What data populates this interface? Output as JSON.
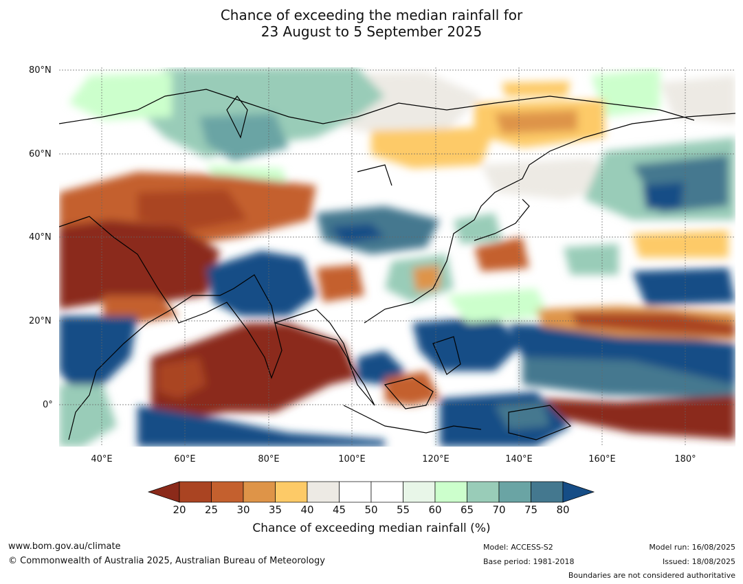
{
  "header": {
    "title_line1": "Chance of exceeding the median rainfall for",
    "title_line2": "23 August to 5 September 2025"
  },
  "map": {
    "lat_labels": [
      "80°N",
      "60°N",
      "40°N",
      "20°N",
      "0°"
    ],
    "lon_labels": [
      "40°E",
      "60°E",
      "80°E",
      "100°E",
      "120°E",
      "140°E",
      "160°E",
      "180°"
    ],
    "extent": {
      "lon": [
        30,
        190
      ],
      "lat": [
        -10,
        80
      ]
    }
  },
  "legend": {
    "title": "Chance of exceeding median rainfall (%)",
    "ticks": [
      "20",
      "25",
      "30",
      "35",
      "40",
      "45",
      "50",
      "55",
      "60",
      "65",
      "70",
      "75",
      "80"
    ],
    "colors": [
      "#8b2a1a",
      "#aa4422",
      "#c4602e",
      "#de9448",
      "#fdca67",
      "#edeae4",
      "#ffffff",
      "#ffffff",
      "#e8f6e8",
      "#ccffcc",
      "#99ccb8",
      "#6aa4a4",
      "#44788f",
      "#164d86"
    ]
  },
  "footer": {
    "website": "www.bom.gov.au/climate",
    "copyright": "© Commonwealth of Australia 2025, Australian Bureau of Meteorology",
    "model": "Model: ACCESS-S2",
    "base_period": "Base period: 1981-2018",
    "model_run": "Model run: 16/08/2025",
    "issued": "Issued: 18/08/2025",
    "disclaimer": "Boundaries are not considered authoritative"
  }
}
